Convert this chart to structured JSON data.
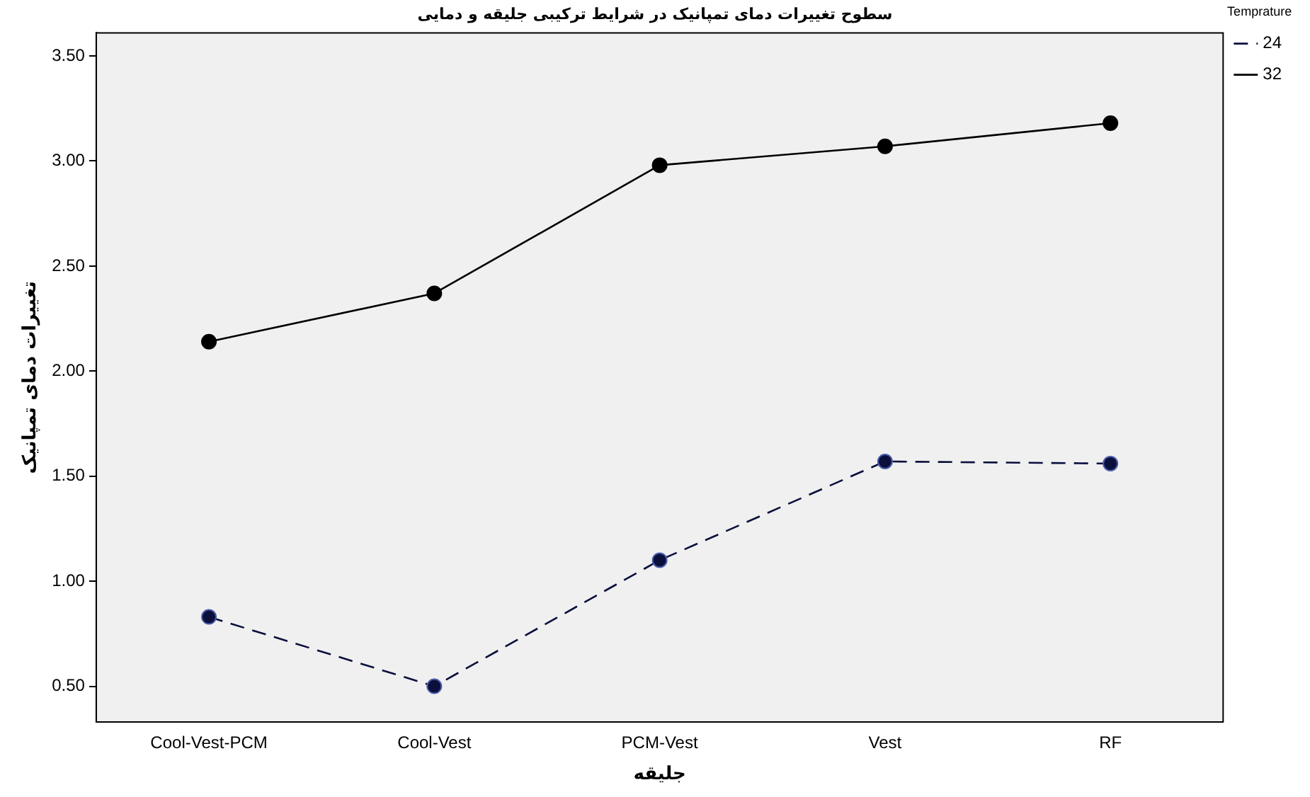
{
  "chart_data": {
    "type": "line",
    "title": "سطوح تغییرات دمای تمپانیک در شرایط ترکیبی جلیقه و دمایی",
    "xlabel": "جلیقه",
    "ylabel": "تغییرات دمای تمپانیک",
    "legend_title": "Temprature",
    "categories": [
      "Cool-Vest-PCM",
      "Cool-Vest",
      "PCM-Vest",
      "Vest",
      "RF"
    ],
    "series": [
      {
        "name": "24",
        "color": "#0a0f3c",
        "line_style": "dashed",
        "values": [
          0.83,
          0.5,
          1.1,
          1.57,
          1.56
        ]
      },
      {
        "name": "32",
        "color": "#000000",
        "line_style": "solid",
        "values": [
          2.14,
          2.37,
          2.98,
          3.07,
          3.18
        ]
      }
    ],
    "ylim": [
      0.33,
      3.61
    ],
    "yticks": [
      {
        "value": 0.5,
        "label": "0.50"
      },
      {
        "value": 1,
        "label": "1.00"
      },
      {
        "value": 1.5,
        "label": "1.50"
      },
      {
        "value": 2,
        "label": "2.00"
      },
      {
        "value": 2.5,
        "label": "2.50"
      },
      {
        "value": 3,
        "label": "3.00"
      },
      {
        "value": 3.5,
        "label": "3.50"
      }
    ],
    "grid": false,
    "legend": "top right",
    "marker": "circle"
  }
}
